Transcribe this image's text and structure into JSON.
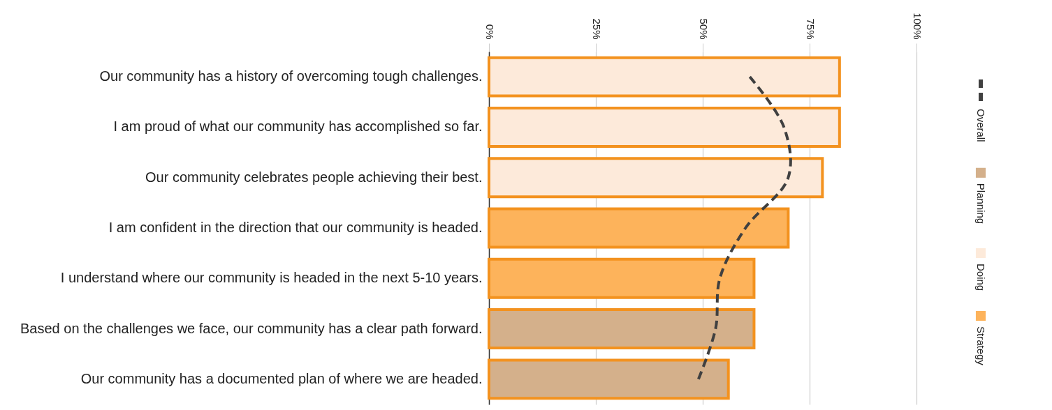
{
  "chart_data": {
    "type": "bar",
    "orientation": "horizontal",
    "categories": [
      "Our community has a history of overcoming tough challenges.",
      "I am proud of what our community has accomplished so far.",
      "Our community celebrates people achieving their best.",
      "I am confident in the direction that our community is headed.",
      "I understand where our community is headed in the next 5-10 years.",
      "Based on the challenges we face, our community has a clear path forward.",
      "Our community has a documented plan of where we are headed."
    ],
    "series": [
      {
        "name": "Overall",
        "type": "line",
        "color": "#404040",
        "values": [
          61,
          69,
          70,
          60,
          54,
          53,
          49
        ]
      },
      {
        "name": "Planning",
        "color": "#d4b08b",
        "values": [
          null,
          null,
          null,
          null,
          null,
          62,
          56
        ]
      },
      {
        "name": "Doing",
        "color": "#fdeada",
        "values": [
          82,
          82,
          78,
          null,
          null,
          null,
          null
        ]
      },
      {
        "name": "Strategy",
        "color": "#fdb35b",
        "values": [
          null,
          null,
          null,
          70,
          62,
          null,
          null
        ]
      }
    ],
    "xlim": [
      0,
      100
    ],
    "xticks": [
      {
        "value": 0,
        "label": "0%"
      },
      {
        "value": 25,
        "label": "25%"
      },
      {
        "value": 50,
        "label": "50%"
      },
      {
        "value": 75,
        "label": "75%"
      },
      {
        "value": 100,
        "label": "100%"
      }
    ],
    "grid": "x",
    "legend": "right",
    "line_style": "dashed"
  }
}
